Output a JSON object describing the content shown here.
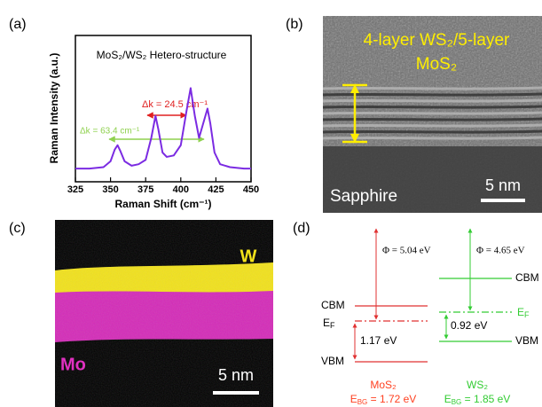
{
  "chart_data": {
    "type": "line",
    "panel_label": "(a)",
    "xlabel": "Raman Shift (cm⁻¹)",
    "ylabel": "Raman Intensity (a.u.)",
    "annotations": [
      "MoS₂/WS₂ Hetero-structure",
      "Δk = 24.5 cm⁻¹",
      "Δk = 63.4 cm⁻¹"
    ],
    "x": [
      325,
      335,
      345,
      350,
      353,
      355,
      357,
      360,
      365,
      370,
      375,
      379,
      382,
      384,
      387,
      390,
      395,
      400,
      404,
      407,
      410,
      413,
      416,
      419,
      421,
      424,
      428,
      435,
      445,
      450
    ],
    "values": [
      0.09,
      0.09,
      0.1,
      0.14,
      0.22,
      0.25,
      0.21,
      0.14,
      0.11,
      0.12,
      0.15,
      0.3,
      0.45,
      0.36,
      0.2,
      0.17,
      0.18,
      0.25,
      0.48,
      0.64,
      0.45,
      0.3,
      0.4,
      0.5,
      0.4,
      0.2,
      0.12,
      0.1,
      0.09,
      0.09
    ],
    "color": "#7b2be2",
    "xlim": [
      325,
      450
    ],
    "xticks": [
      325,
      350,
      375,
      400,
      425,
      450
    ],
    "ylim": [
      0,
      1
    ]
  },
  "panels": {
    "b": {
      "label": "(b)",
      "title_line1": "4-layer WS₂/5-layer",
      "title_line2": "MoS₂",
      "substrate": "Sapphire",
      "scale": "5 nm"
    },
    "c": {
      "label": "(c)",
      "top_element": "W",
      "bottom_element": "Mo",
      "scale": "5 nm"
    },
    "d": {
      "label": "(d)",
      "phi_left": "Φ = 5.04 eV",
      "phi_right": "Φ = 4.65 eV",
      "cbm_left": "CBM",
      "cbm_right": "CBM",
      "vbm_left": "VBM",
      "vbm_right": "VBM",
      "ef_left": {
        "symbol": "E",
        "subscript": "F"
      },
      "ef_right": {
        "symbol": "E",
        "subscript": "F"
      },
      "offset_left": "1.17 eV",
      "offset_right": "0.92 eV",
      "material_left": "MoS₂",
      "material_right": "WS₂",
      "gap_left": {
        "symbol": "E",
        "subscript": "BG",
        "value": " = 1.72 eV"
      },
      "gap_right": {
        "symbol": "E",
        "subscript": "BG",
        "value": " = 1.85 eV"
      }
    }
  }
}
